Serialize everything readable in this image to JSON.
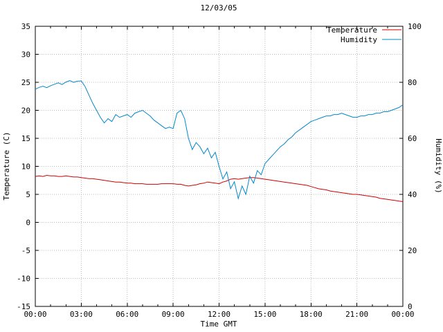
{
  "chart_data": {
    "type": "line",
    "title": "12/03/05",
    "xlabel": "Time GMT",
    "ylabel_left": "Temperature (C)",
    "ylabel_right": "Humidity (%)",
    "xlim": [
      0,
      24
    ],
    "ylim_left": [
      -15,
      35
    ],
    "ylim_right": [
      0,
      100
    ],
    "grid": true,
    "legend_position": "top-right",
    "grid_color": "#b8b8b8",
    "x_tick_values": [
      0,
      3,
      6,
      9,
      12,
      15,
      18,
      21,
      24
    ],
    "x_tick_labels": [
      "00:00",
      "03:00",
      "06:00",
      "09:00",
      "12:00",
      "15:00",
      "18:00",
      "21:00",
      "00:00"
    ],
    "x_minor_tick_values": [
      1,
      2,
      4,
      5,
      7,
      8,
      10,
      11,
      13,
      14,
      16,
      17,
      19,
      20,
      22,
      23
    ],
    "y_left_tick_values": [
      -15,
      -10,
      -5,
      0,
      5,
      10,
      15,
      20,
      25,
      30,
      35
    ],
    "y_left_tick_labels": [
      "-15",
      "-10",
      "-5",
      "0",
      "5",
      "10",
      "15",
      "20",
      "25",
      "30",
      "35"
    ],
    "y_right_tick_values": [
      0,
      20,
      40,
      60,
      80,
      100
    ],
    "y_right_tick_labels": [
      "0",
      "20",
      "40",
      "60",
      "80",
      "100"
    ],
    "x": [
      0,
      0.25,
      0.5,
      0.75,
      1,
      1.25,
      1.5,
      1.75,
      2,
      2.25,
      2.5,
      2.75,
      3,
      3.25,
      3.5,
      3.75,
      4,
      4.25,
      4.5,
      4.75,
      5,
      5.25,
      5.5,
      5.75,
      6,
      6.25,
      6.5,
      6.75,
      7,
      7.25,
      7.5,
      7.75,
      8,
      8.25,
      8.5,
      8.75,
      9,
      9.25,
      9.5,
      9.75,
      10,
      10.25,
      10.5,
      10.75,
      11,
      11.25,
      11.5,
      11.75,
      12,
      12.25,
      12.5,
      12.75,
      13,
      13.25,
      13.5,
      13.75,
      14,
      14.25,
      14.5,
      14.75,
      15,
      15.25,
      15.5,
      15.75,
      16,
      16.25,
      16.5,
      16.75,
      17,
      17.25,
      17.5,
      17.75,
      18,
      18.25,
      18.5,
      18.75,
      19,
      19.25,
      19.5,
      19.75,
      20,
      20.25,
      20.5,
      20.75,
      21,
      21.25,
      21.5,
      21.75,
      22,
      22.25,
      22.5,
      22.75,
      23,
      23.25,
      23.5,
      23.75,
      24
    ],
    "series": [
      {
        "name": "Temperature",
        "axis": "left",
        "color": "#cc0000",
        "values": [
          8.2,
          8.3,
          8.2,
          8.4,
          8.3,
          8.3,
          8.2,
          8.2,
          8.3,
          8.2,
          8.1,
          8.1,
          8.0,
          7.9,
          7.8,
          7.8,
          7.7,
          7.6,
          7.5,
          7.4,
          7.3,
          7.2,
          7.2,
          7.1,
          7.0,
          7.0,
          6.9,
          6.9,
          6.9,
          6.8,
          6.8,
          6.8,
          6.8,
          6.9,
          6.9,
          6.9,
          6.9,
          6.8,
          6.8,
          6.6,
          6.5,
          6.6,
          6.7,
          6.9,
          7.0,
          7.2,
          7.1,
          7.0,
          6.9,
          7.2,
          7.4,
          7.7,
          7.8,
          7.7,
          7.8,
          7.9,
          8.0,
          8.0,
          7.9,
          7.8,
          7.7,
          7.6,
          7.5,
          7.4,
          7.3,
          7.2,
          7.1,
          7.0,
          6.9,
          6.8,
          6.7,
          6.6,
          6.4,
          6.2,
          6.0,
          5.9,
          5.8,
          5.6,
          5.5,
          5.4,
          5.3,
          5.2,
          5.1,
          5.0,
          5.0,
          4.9,
          4.8,
          4.7,
          4.6,
          4.5,
          4.3,
          4.2,
          4.1,
          4.0,
          3.9,
          3.8,
          3.7
        ]
      },
      {
        "name": "Humidity",
        "axis": "right",
        "color": "#0088cc",
        "values": [
          77.5,
          78.2,
          78.6,
          78.1,
          78.8,
          79.3,
          79.8,
          79.2,
          80.1,
          80.6,
          80.0,
          80.4,
          80.5,
          78.5,
          75.5,
          72.5,
          70.0,
          67.5,
          65.5,
          67.0,
          66.0,
          68.5,
          67.5,
          68.0,
          68.5,
          67.5,
          69.0,
          69.5,
          70.0,
          69.0,
          68.0,
          66.5,
          65.5,
          64.5,
          63.5,
          64.0,
          63.5,
          69.0,
          70.0,
          67.0,
          60.0,
          56.0,
          58.5,
          57.0,
          54.5,
          56.5,
          53.0,
          55.0,
          50.0,
          45.5,
          48.0,
          42.0,
          44.5,
          38.5,
          43.0,
          40.0,
          46.5,
          44.0,
          48.5,
          47.0,
          51.0,
          52.5,
          54.0,
          55.5,
          57.0,
          58.0,
          59.5,
          60.5,
          62.0,
          63.0,
          64.0,
          65.0,
          66.0,
          66.5,
          67.0,
          67.5,
          68.0,
          68.0,
          68.5,
          68.5,
          69.0,
          68.5,
          68.0,
          67.5,
          67.5,
          68.0,
          68.0,
          68.5,
          68.5,
          69.0,
          69.0,
          69.5,
          69.5,
          70.0,
          70.5,
          71.0,
          72.0
        ]
      }
    ]
  }
}
